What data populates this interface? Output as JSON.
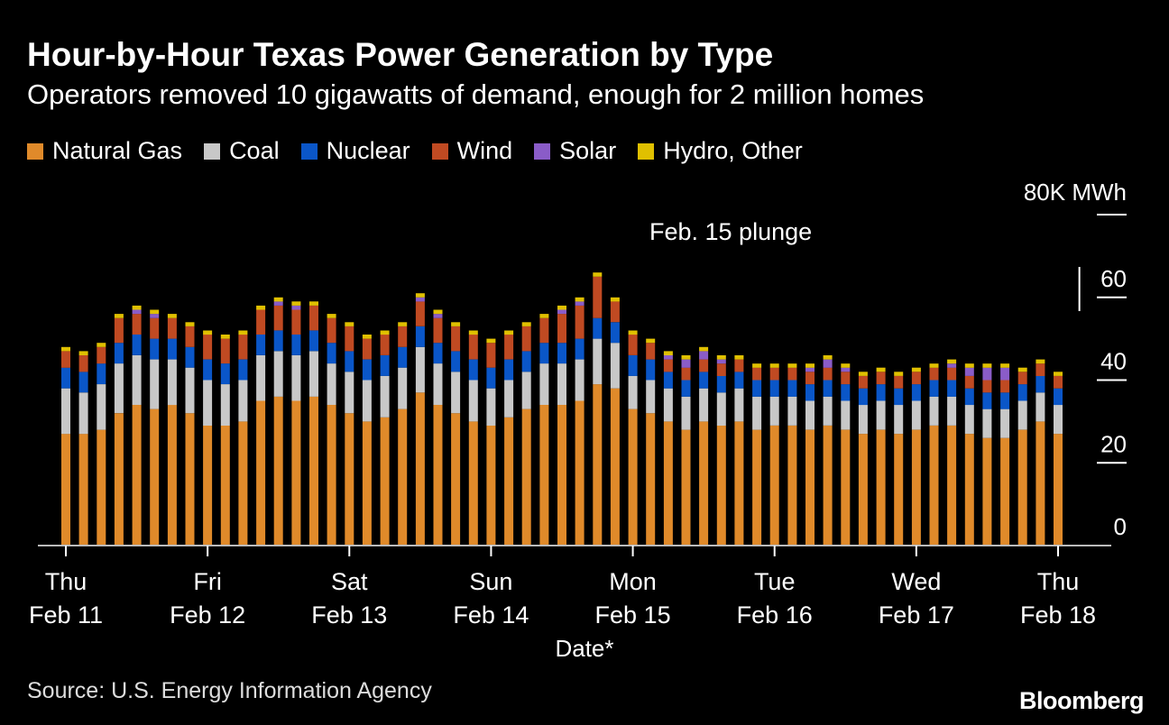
{
  "title": "Hour-by-Hour Texas Power Generation by Type",
  "subtitle": "Operators removed 10 gigawatts of demand, enough for 2 million homes",
  "source": "Source: U.S. Energy Information Agency",
  "brand": "Bloomberg",
  "chart_data": {
    "type": "bar",
    "stacked": true,
    "title": "Hour-by-Hour Texas Power Generation by Type",
    "xlabel": "Date*",
    "ylabel": "MWh",
    "yunit_label": "80K MWh",
    "ylim": [
      0,
      80
    ],
    "yticks": [
      0,
      20,
      40,
      60
    ],
    "ytick_labels": [
      "0",
      "20",
      "40",
      "60"
    ],
    "legend_position": "top-left",
    "annotation": {
      "text": "Feb. 15 plunge",
      "x": 57
    },
    "xticks": [
      {
        "x": 0,
        "day": "Thu",
        "date": "Feb 11"
      },
      {
        "x": 8,
        "day": "Fri",
        "date": "Feb 12"
      },
      {
        "x": 16,
        "day": "Sat",
        "date": "Feb 13"
      },
      {
        "x": 24,
        "day": "Sun",
        "date": "Feb 14"
      },
      {
        "x": 32,
        "day": "Mon",
        "date": "Feb 15"
      },
      {
        "x": 40,
        "day": "Tue",
        "date": "Feb 16"
      },
      {
        "x": 48,
        "day": "Wed",
        "date": "Feb 17"
      },
      {
        "x": 56,
        "day": "Thu",
        "date": "Feb 18"
      }
    ],
    "categories": [
      "Feb11-00",
      "Feb11-03",
      "Feb11-06",
      "Feb11-09",
      "Feb11-12",
      "Feb11-15",
      "Feb11-18",
      "Feb11-21",
      "Feb12-00",
      "Feb12-03",
      "Feb12-06",
      "Feb12-09",
      "Feb12-12",
      "Feb12-15",
      "Feb12-18",
      "Feb12-21",
      "Feb13-00",
      "Feb13-03",
      "Feb13-06",
      "Feb13-09",
      "Feb13-12",
      "Feb13-15",
      "Feb13-18",
      "Feb13-21",
      "Feb14-00",
      "Feb14-03",
      "Feb14-06",
      "Feb14-09",
      "Feb14-12",
      "Feb14-15",
      "Feb14-18",
      "Feb14-21",
      "Feb15-00",
      "Feb15-03",
      "Feb15-06",
      "Feb15-09",
      "Feb15-12",
      "Feb15-15",
      "Feb15-18",
      "Feb15-21",
      "Feb16-00",
      "Feb16-03",
      "Feb16-06",
      "Feb16-09",
      "Feb16-12",
      "Feb16-15",
      "Feb16-18",
      "Feb16-21",
      "Feb17-00",
      "Feb17-03",
      "Feb17-06",
      "Feb17-09",
      "Feb17-12",
      "Feb17-15",
      "Feb17-18",
      "Feb17-21",
      "Feb18-00"
    ],
    "series": [
      {
        "name": "Natural Gas",
        "color": "#e08a2a",
        "values": [
          27,
          27,
          28,
          32,
          34,
          33,
          34,
          32,
          29,
          29,
          30,
          35,
          36,
          35,
          36,
          34,
          32,
          30,
          31,
          33,
          37,
          34,
          32,
          30,
          29,
          31,
          33,
          34,
          34,
          35,
          39,
          38,
          33,
          32,
          30,
          28,
          30,
          29,
          30,
          28,
          29,
          29,
          28,
          29,
          28,
          27,
          28,
          27,
          28,
          29,
          29,
          27,
          26,
          26,
          28,
          30,
          27
        ]
      },
      {
        "name": "Coal",
        "color": "#c8c8c8",
        "values": [
          11,
          10,
          11,
          12,
          12,
          12,
          11,
          11,
          11,
          10,
          10,
          11,
          11,
          11,
          11,
          10,
          10,
          10,
          10,
          10,
          11,
          10,
          10,
          10,
          9,
          9,
          9,
          10,
          10,
          10,
          11,
          11,
          8,
          8,
          8,
          8,
          8,
          8,
          8,
          8,
          7,
          7,
          7,
          7,
          7,
          7,
          7,
          7,
          7,
          7,
          7,
          7,
          7,
          7,
          7,
          7,
          7
        ]
      },
      {
        "name": "Nuclear",
        "color": "#0a56c8",
        "values": [
          5,
          5,
          5,
          5,
          5,
          5,
          5,
          5,
          5,
          5,
          5,
          5,
          5,
          5,
          5,
          5,
          5,
          5,
          5,
          5,
          5,
          5,
          5,
          5,
          5,
          5,
          5,
          5,
          5,
          5,
          5,
          5,
          5,
          5,
          4,
          4,
          4,
          4,
          4,
          4,
          4,
          4,
          4,
          4,
          4,
          4,
          4,
          4,
          4,
          4,
          4,
          4,
          4,
          4,
          4,
          4,
          4
        ]
      },
      {
        "name": "Wind",
        "color": "#c04a22",
        "values": [
          4,
          4,
          4,
          6,
          5,
          5,
          5,
          5,
          6,
          6,
          6,
          6,
          6,
          6,
          6,
          6,
          6,
          5,
          5,
          5,
          6,
          6,
          6,
          6,
          6,
          6,
          6,
          6,
          7,
          8,
          10,
          5,
          5,
          4,
          3,
          3,
          3,
          3,
          3,
          3,
          3,
          3,
          3,
          3,
          3,
          3,
          3,
          3,
          3,
          3,
          3,
          3,
          3,
          3,
          3,
          3,
          3
        ]
      },
      {
        "name": "Solar",
        "color": "#8a5cc8",
        "values": [
          0,
          0,
          0,
          0,
          1,
          1,
          0,
          0,
          0,
          0,
          0,
          0,
          1,
          1,
          0,
          0,
          0,
          0,
          0,
          0,
          1,
          1,
          0,
          0,
          0,
          0,
          0,
          0,
          1,
          1,
          0,
          0,
          0,
          0,
          1,
          2,
          2,
          1,
          0,
          0,
          0,
          0,
          1,
          2,
          1,
          0,
          0,
          0,
          0,
          0,
          1,
          2,
          3,
          3,
          0,
          0,
          0
        ]
      },
      {
        "name": "Hydro, Other",
        "color": "#e0c000",
        "values": [
          1,
          1,
          1,
          1,
          1,
          1,
          1,
          1,
          1,
          1,
          1,
          1,
          1,
          1,
          1,
          1,
          1,
          1,
          1,
          1,
          1,
          1,
          1,
          1,
          1,
          1,
          1,
          1,
          1,
          1,
          1,
          1,
          1,
          1,
          1,
          1,
          1,
          1,
          1,
          1,
          1,
          1,
          1,
          1,
          1,
          1,
          1,
          1,
          1,
          1,
          1,
          1,
          1,
          1,
          1,
          1,
          1
        ]
      }
    ]
  }
}
